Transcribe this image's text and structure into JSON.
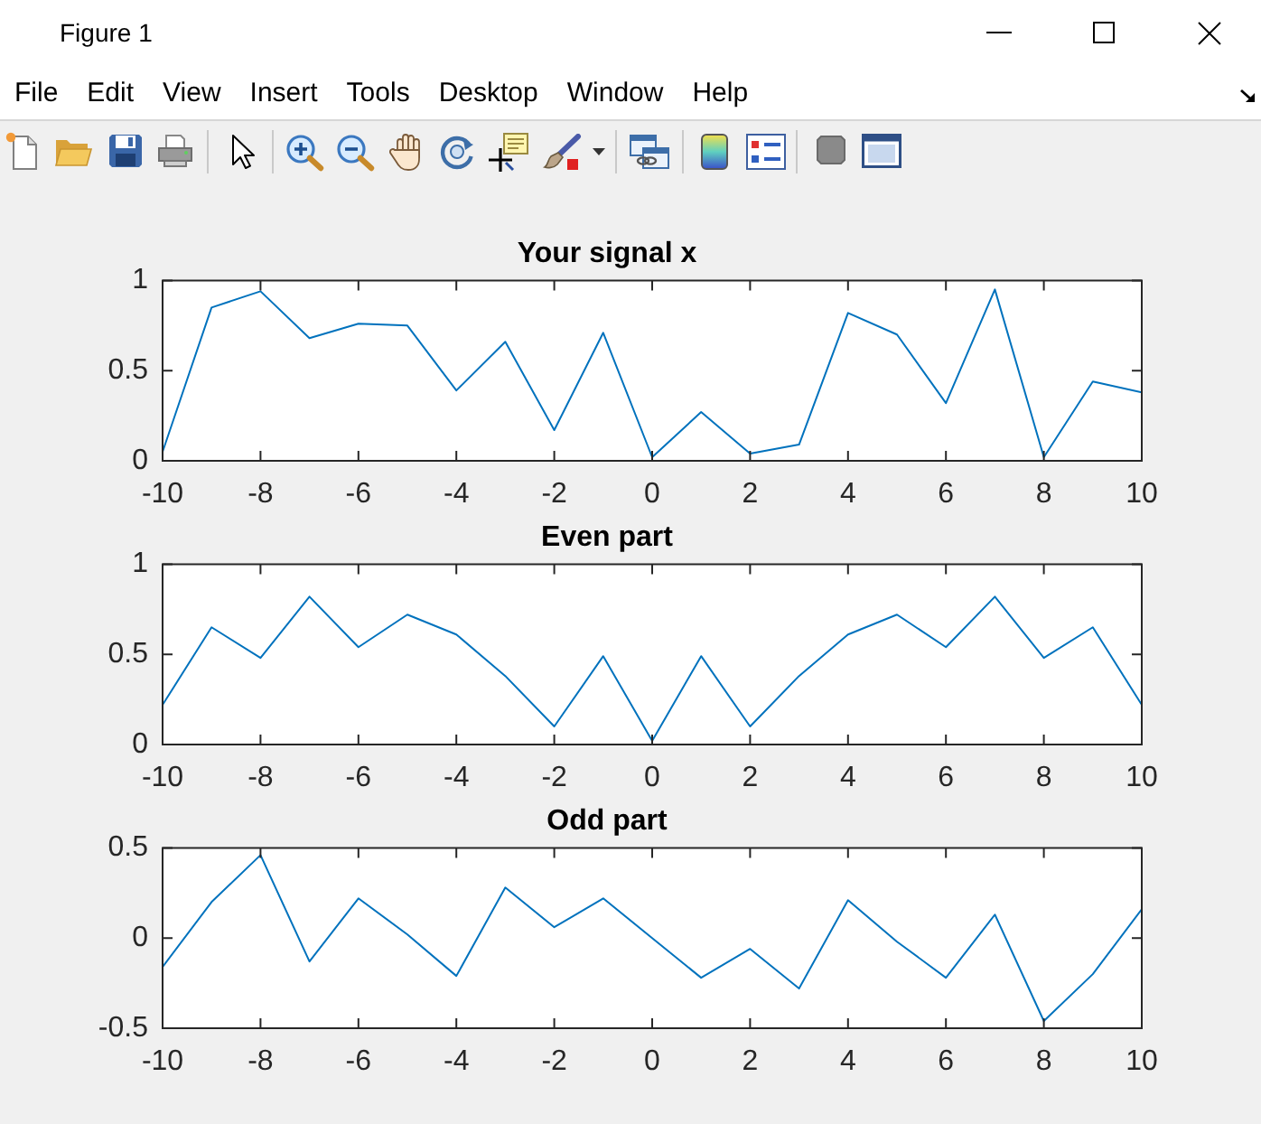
{
  "chart_data": [
    {
      "type": "line",
      "title": "Your signal x",
      "annotations": [
        "Figure 1",
        "File",
        "Edit",
        "View",
        "Insert",
        "Tools",
        "Desktop",
        "Window",
        "Help"
      ],
      "x": [
        -10,
        -9,
        -8,
        -7,
        -6,
        -5,
        -4,
        -3,
        -2,
        -1,
        0,
        1,
        2,
        3,
        4,
        5,
        6,
        7,
        8,
        9,
        10
      ],
      "values": [
        0.05,
        0.85,
        0.94,
        0.68,
        0.76,
        0.75,
        0.39,
        0.66,
        0.17,
        0.71,
        0.02,
        0.27,
        0.04,
        0.09,
        0.82,
        0.7,
        0.32,
        0.95,
        0.02,
        0.44,
        0.38
      ],
      "color": "#0072bd",
      "xlim": [
        -10,
        10
      ],
      "xticks": [
        -10,
        -8,
        -6,
        -4,
        -2,
        0,
        2,
        4,
        6,
        8,
        10
      ],
      "ylim": [
        0,
        1
      ],
      "yticks": [
        0,
        0.5,
        1
      ]
    },
    {
      "type": "line",
      "title": "Even part",
      "x": [
        -10,
        -9,
        -8,
        -7,
        -6,
        -5,
        -4,
        -3,
        -2,
        -1,
        0,
        1,
        2,
        3,
        4,
        5,
        6,
        7,
        8,
        9,
        10
      ],
      "values": [
        0.22,
        0.65,
        0.48,
        0.82,
        0.54,
        0.72,
        0.61,
        0.38,
        0.1,
        0.49,
        0.02,
        0.49,
        0.1,
        0.38,
        0.61,
        0.72,
        0.54,
        0.82,
        0.48,
        0.65,
        0.22
      ],
      "color": "#0072bd",
      "xlim": [
        -10,
        10
      ],
      "xticks": [
        -10,
        -8,
        -6,
        -4,
        -2,
        0,
        2,
        4,
        6,
        8,
        10
      ],
      "ylim": [
        0,
        1
      ],
      "yticks": [
        0,
        0.5,
        1
      ]
    },
    {
      "type": "line",
      "title": "Odd part",
      "x": [
        -10,
        -9,
        -8,
        -7,
        -6,
        -5,
        -4,
        -3,
        -2,
        -1,
        0,
        1,
        2,
        3,
        4,
        5,
        6,
        7,
        8,
        9,
        10
      ],
      "values": [
        -0.16,
        0.2,
        0.46,
        -0.13,
        0.22,
        0.02,
        -0.21,
        0.28,
        0.06,
        0.22,
        0,
        -0.22,
        -0.06,
        -0.28,
        0.21,
        -0.02,
        -0.22,
        0.13,
        -0.46,
        -0.2,
        0.16
      ],
      "color": "#0072bd",
      "xlim": [
        -10,
        10
      ],
      "xticks": [
        -10,
        -8,
        -6,
        -4,
        -2,
        0,
        2,
        4,
        6,
        8,
        10
      ],
      "ylim": [
        -0.5,
        0.5
      ],
      "yticks": [
        -0.5,
        0,
        0.5
      ]
    }
  ]
}
